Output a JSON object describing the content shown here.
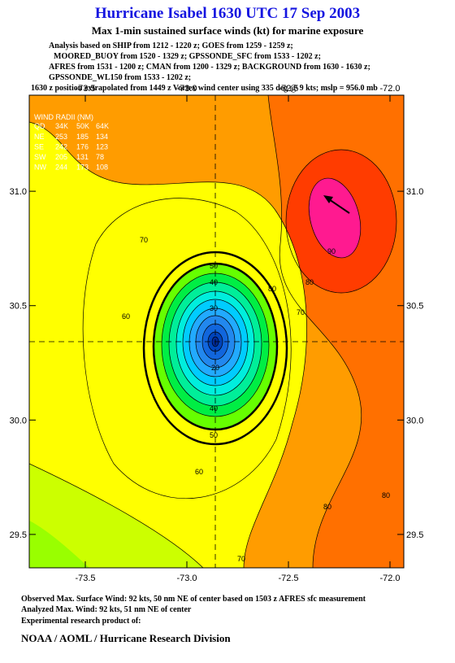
{
  "header": {
    "title": "Hurricane Isabel 1630 UTC 17 Sep 2003",
    "subtitle": "Max 1-min sustained surface winds (kt) for marine exposure",
    "lines": [
      "Analysis based on  SHIP from 1212 - 1220 z;  GOES from 1259 - 1259 z;",
      "MOORED_BUOY from 1520 - 1329 z;  GPSSONDE_SFC from 1533 - 1202 z;",
      "AFRES from 1531 - 1200 z;  CMAN from 1200 - 1329 z;  BACKGROUND from 1630 - 1630 z;",
      "GPSSONDE_WL150 from 1533 - 1202 z;",
      "1630 z position extrapolated from 1449 z Vortex wind center using 335 deg @ 9 kts; mslp = 956.0 mb"
    ]
  },
  "map": {
    "xlim": [
      -73.776,
      -71.932
    ],
    "ylim": [
      29.354,
      31.42
    ],
    "xticks": [
      -73.5,
      {
        "value": -73,
        "label": "-73.0"
      },
      -72.5,
      {
        "value": -72,
        "label": "-72.0"
      }
    ],
    "yticks": [
      29.5,
      {
        "value": 30,
        "label": "30.0"
      },
      30.5,
      {
        "value": 31,
        "label": "31.0"
      }
    ],
    "contour_labels": [
      "70",
      "60",
      "50",
      "40",
      "30",
      "20",
      "40",
      "50",
      "60",
      "70",
      "80",
      "90",
      "80",
      "80",
      "70",
      "80"
    ],
    "wind_radii": {
      "title": "WIND RADII (NM)",
      "header": [
        "QD",
        "34K",
        "50K",
        "64K"
      ],
      "rows": [
        [
          "NE",
          "253",
          "185",
          "134"
        ],
        [
          "SE",
          "242",
          "176",
          "123"
        ],
        [
          "SW",
          "205",
          "131",
          "78"
        ],
        [
          "NW",
          "244",
          "173",
          "108"
        ]
      ]
    }
  },
  "footer": {
    "lines": [
      "Observed Max. Surface Wind: 92 kts, 50 nm NE of center based on 1503 z AFRES sfc measurement",
      "Analyzed Max. Wind: 92 kts, 51 nm NE of center",
      "Experimental research product of:"
    ],
    "credit": "NOAA / AOML / Hurricane Research Division"
  }
}
